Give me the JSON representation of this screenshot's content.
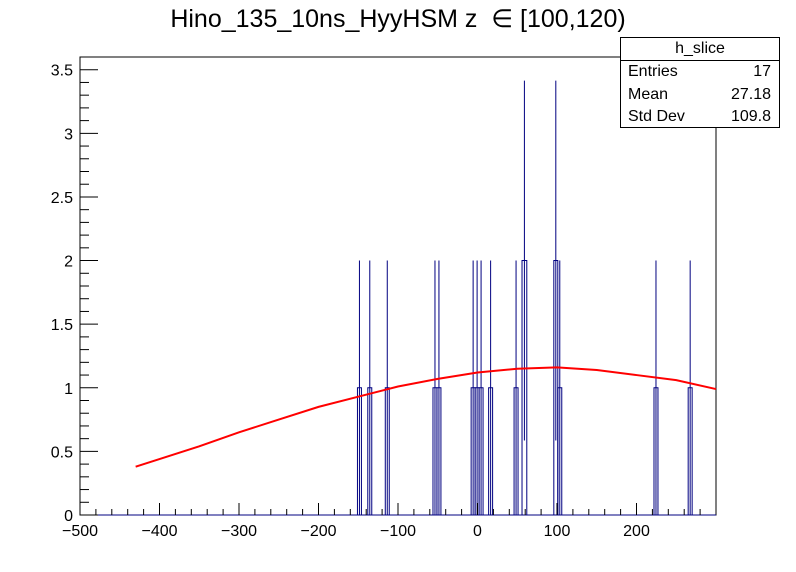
{
  "chart_data": {
    "type": "histogram",
    "title": "Hino_135_10ns_HyyHSM z  ∈ [100,120)",
    "xlim": [
      -500,
      300
    ],
    "ylim": [
      0,
      3.6
    ],
    "x_ticks": [
      "−500",
      "−400",
      "−300",
      "−200",
      "−100",
      "0",
      "100",
      "200"
    ],
    "x_tick_values": [
      -500,
      -400,
      -300,
      -200,
      -100,
      0,
      100,
      200
    ],
    "y_ticks": [
      "0",
      "0.5",
      "1",
      "1.5",
      "2",
      "2.5",
      "3",
      "3.5"
    ],
    "y_tick_values": [
      0,
      0.5,
      1,
      1.5,
      2,
      2.5,
      3,
      3.5
    ],
    "histogram_color": "#000080",
    "fit_color": "#ff0000",
    "bins": [
      {
        "low": -151,
        "high": -146,
        "content": 1,
        "error": 1
      },
      {
        "low": -138,
        "high": -133,
        "content": 1,
        "error": 1
      },
      {
        "low": -116,
        "high": -111,
        "content": 1,
        "error": 1
      },
      {
        "low": -56,
        "high": -51,
        "content": 1,
        "error": 1
      },
      {
        "low": -51,
        "high": -46,
        "content": 1,
        "error": 1
      },
      {
        "low": -8,
        "high": -3,
        "content": 1,
        "error": 1
      },
      {
        "low": -3,
        "high": 2,
        "content": 1,
        "error": 1
      },
      {
        "low": 2,
        "high": 7,
        "content": 1,
        "error": 1
      },
      {
        "low": 14,
        "high": 19,
        "content": 1,
        "error": 1
      },
      {
        "low": 46,
        "high": 51,
        "content": 1,
        "error": 1
      },
      {
        "low": 56,
        "high": 62,
        "content": 2,
        "error": 1.414
      },
      {
        "low": 96,
        "high": 101,
        "content": 2,
        "error": 1.414
      },
      {
        "low": 101,
        "high": 106,
        "content": 1,
        "error": 1
      },
      {
        "low": 222,
        "high": 227,
        "content": 1,
        "error": 1
      },
      {
        "low": 265,
        "high": 270,
        "content": 1,
        "error": 1
      }
    ],
    "fit_curve": {
      "x": [
        -430,
        -400,
        -350,
        -300,
        -250,
        -200,
        -150,
        -100,
        -50,
        0,
        50,
        100,
        150,
        200,
        250,
        300
      ],
      "y": [
        0.38,
        0.44,
        0.54,
        0.65,
        0.75,
        0.85,
        0.93,
        1.01,
        1.07,
        1.12,
        1.15,
        1.16,
        1.14,
        1.1,
        1.06,
        0.99
      ]
    }
  },
  "stats_box": {
    "name": "h_slice",
    "entries_label": "Entries",
    "entries_value": "17",
    "mean_label": "Mean",
    "mean_value": "27.18",
    "stddev_label": "Std Dev",
    "stddev_value": "109.8"
  }
}
